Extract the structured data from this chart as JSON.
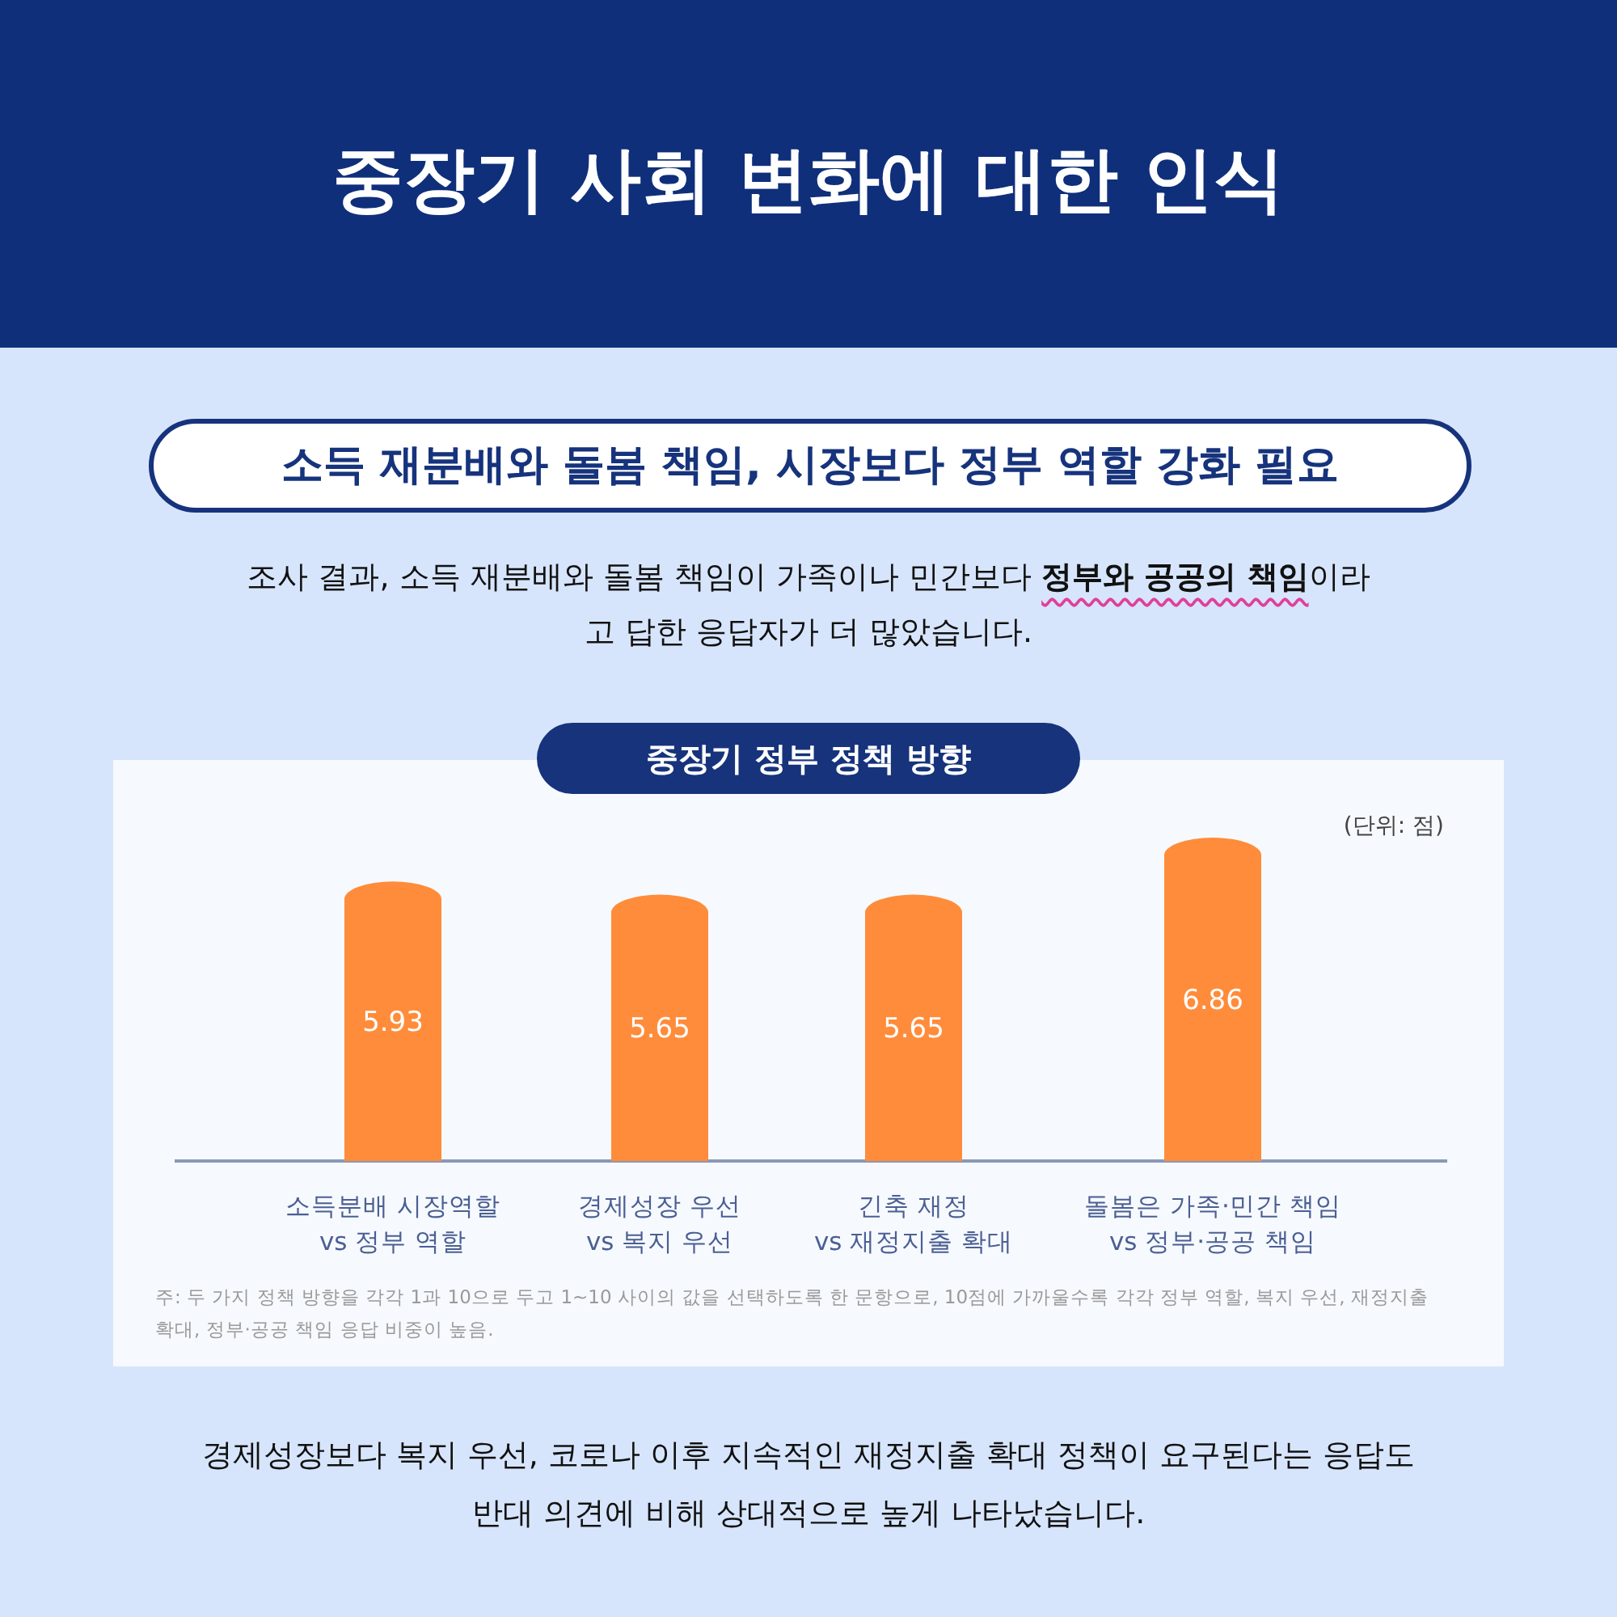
{
  "chart_data": {
    "type": "bar",
    "title": "중장기 사회 변화에 대한 인식",
    "subtitle": "소득 재분배와 돌봄 책임, 시장보다 정부 역할 강화 필요",
    "categories": [
      "소득분배 시장역할\nvs 정부 역할",
      "경제성장 우선\nvs 복지 우선",
      "긴축 재정\nvs 재정지출 확대",
      "돌봄은 가족·민간 책임\nvs 정부·공공 책임"
    ],
    "values": [
      5.93,
      5.65,
      5.65,
      6.86
    ],
    "color": "#ff8c3a",
    "data_labels": true,
    "annotations": [
      "조사 결과, 소득 재분배와 돌봄 책임이 가족이나 민간보다 **정부와 공공의 책임**이라고 답한 응답자가 더 많았습니다.",
      "중장기 정부 정책 방향",
      "(단위: 점)",
      "주: 두 가지 정책 방향을 각각 1과 10으로 두고 1~10 사이의 값을 선택하도록 한 문항으로, 10점에 가까울수록 각각 정부 역할, 복지 우선, 재정지출 확대, 정부·공공 책임 응답 비중이 높음.",
      "경제성장보다 복지 우선, 코로나 이후 지속적인 재정지출 확대 정책이 요구된다는 응답도 반대 의견에 비해 상대적으로 높게 나타났습니다."
    ]
  }
}
